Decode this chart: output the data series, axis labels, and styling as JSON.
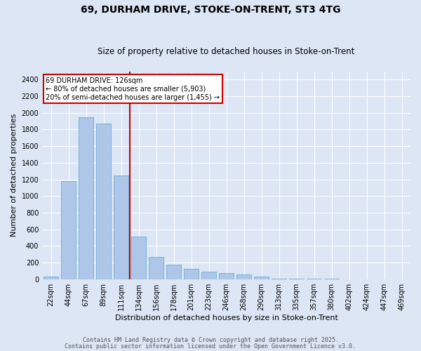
{
  "title_line1": "69, DURHAM DRIVE, STOKE-ON-TRENT, ST3 4TG",
  "title_line2": "Size of property relative to detached houses in Stoke-on-Trent",
  "xlabel": "Distribution of detached houses by size in Stoke-on-Trent",
  "ylabel": "Number of detached properties",
  "categories": [
    "22sqm",
    "44sqm",
    "67sqm",
    "89sqm",
    "111sqm",
    "134sqm",
    "156sqm",
    "178sqm",
    "201sqm",
    "223sqm",
    "246sqm",
    "268sqm",
    "290sqm",
    "313sqm",
    "335sqm",
    "357sqm",
    "380sqm",
    "402sqm",
    "424sqm",
    "447sqm",
    "469sqm"
  ],
  "values": [
    30,
    1175,
    1950,
    1875,
    1250,
    510,
    270,
    175,
    125,
    90,
    75,
    55,
    30,
    10,
    5,
    3,
    2,
    1,
    1,
    0,
    0
  ],
  "bar_color": "#aec6e8",
  "bar_edge_color": "#6baed6",
  "background_color": "#dce6f5",
  "grid_color": "#ffffff",
  "annotation_text": "69 DURHAM DRIVE: 126sqm\n← 80% of detached houses are smaller (5,903)\n20% of semi-detached houses are larger (1,455) →",
  "annotation_box_color": "#ffffff",
  "annotation_box_edge": "#cc0000",
  "red_line_color": "#cc0000",
  "ylim": [
    0,
    2500
  ],
  "yticks": [
    0,
    200,
    400,
    600,
    800,
    1000,
    1200,
    1400,
    1600,
    1800,
    2000,
    2200,
    2400
  ],
  "footer_line1": "Contains HM Land Registry data © Crown copyright and database right 2025.",
  "footer_line2": "Contains public sector information licensed under the Open Government Licence v3.0.",
  "title_fontsize": 10,
  "subtitle_fontsize": 8.5,
  "xlabel_fontsize": 8,
  "ylabel_fontsize": 8,
  "tick_fontsize": 7,
  "footer_fontsize": 6
}
